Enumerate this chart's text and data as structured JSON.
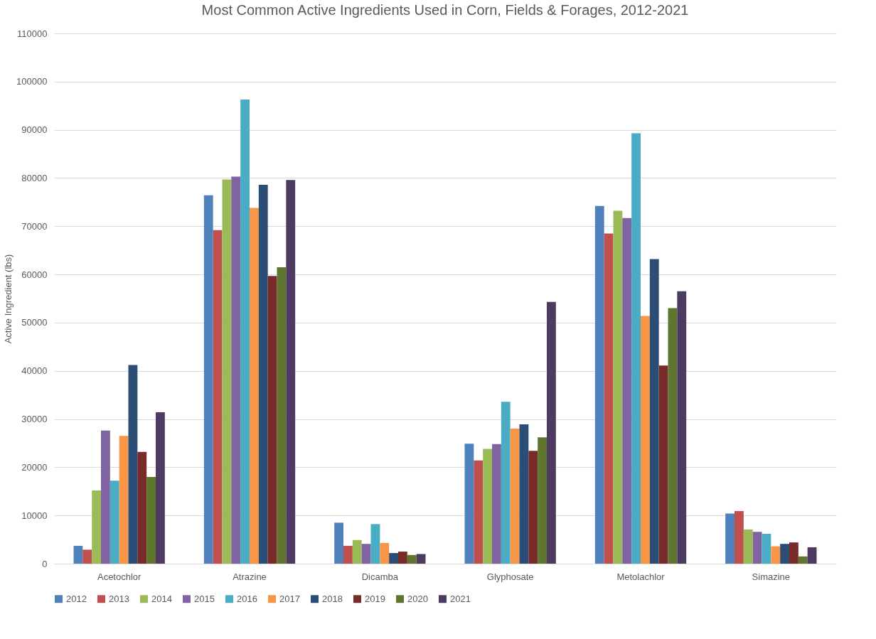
{
  "chart_data": {
    "type": "bar",
    "title": "Most Common Active Ingredients Used in Corn, Fields & Forages, 2012-2021",
    "ylabel": "Active Ingredient (lbs)",
    "categories": [
      "Acetochlor",
      "Atrazine",
      "Dicamba",
      "Glyphosate",
      "Metolachlor",
      "Simazine"
    ],
    "series": [
      {
        "name": "2012",
        "color": "#4f81bd",
        "values": [
          3700,
          76400,
          8500,
          24900,
          74200,
          10400
        ]
      },
      {
        "name": "2013",
        "color": "#c0504d",
        "values": [
          2900,
          69200,
          3700,
          21400,
          68500,
          10900
        ]
      },
      {
        "name": "2014",
        "color": "#9bbb59",
        "values": [
          15200,
          79700,
          4900,
          23800,
          73200,
          7100
        ]
      },
      {
        "name": "2015",
        "color": "#8064a2",
        "values": [
          27600,
          80300,
          4100,
          24800,
          71700,
          6600
        ]
      },
      {
        "name": "2016",
        "color": "#4bacc6",
        "values": [
          17200,
          96300,
          8200,
          33600,
          89300,
          6200
        ]
      },
      {
        "name": "2017",
        "color": "#f79646",
        "values": [
          26500,
          73800,
          4300,
          28000,
          51400,
          3600
        ]
      },
      {
        "name": "2018",
        "color": "#2c4d75",
        "values": [
          41200,
          78600,
          2200,
          28900,
          63200,
          4100
        ]
      },
      {
        "name": "2019",
        "color": "#772c2a",
        "values": [
          23200,
          59700,
          2500,
          23400,
          41100,
          4400
        ]
      },
      {
        "name": "2020",
        "color": "#5f7530",
        "values": [
          18000,
          61500,
          1800,
          26200,
          53000,
          1500
        ]
      },
      {
        "name": "2021",
        "color": "#4d3b62",
        "values": [
          31400,
          79600,
          2000,
          54300,
          56500,
          3400
        ]
      }
    ],
    "ylim": [
      0,
      110000
    ],
    "yticks": [
      0,
      10000,
      20000,
      30000,
      40000,
      50000,
      60000,
      70000,
      80000,
      90000,
      100000,
      110000
    ],
    "grid": "y",
    "legend": "bottom"
  }
}
